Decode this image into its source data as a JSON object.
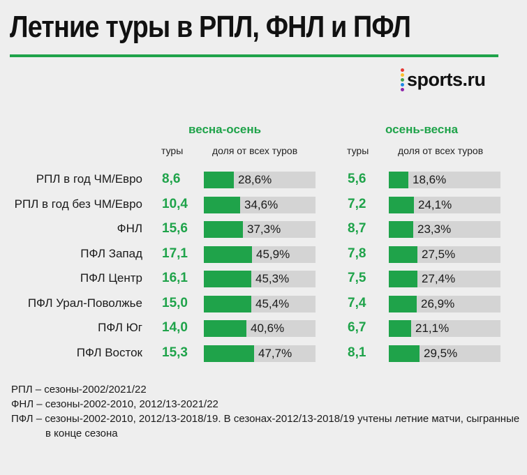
{
  "title": "Летние туры в РПЛ, ФНЛ и ПФЛ",
  "brand": "sports.ru",
  "brand_dot_colors": [
    "#e53935",
    "#fbc02d",
    "#43a047",
    "#1e88e5",
    "#8e24aa"
  ],
  "chart_data": {
    "type": "table",
    "title": "Летние туры в РПЛ, ФНЛ и ПФЛ",
    "categories": [
      "РПЛ в год ЧМ/Евро",
      "РПЛ в год без ЧМ/Евро",
      "ФНЛ",
      "ПФЛ Запад",
      "ПФЛ Центр",
      "ПФЛ Урал-Поволжье",
      "ПФЛ Юг",
      "ПФЛ Восток"
    ],
    "groups": [
      {
        "name": "весна-осень",
        "tours_header": "туры",
        "share_header": "доля от всех туров",
        "tours": [
          "8,6",
          "10,4",
          "15,6",
          "17,1",
          "16,1",
          "15,0",
          "14,0",
          "15,3"
        ],
        "shares": [
          "28,6%",
          "34,6%",
          "37,3%",
          "45,9%",
          "45,3%",
          "45,4%",
          "40,6%",
          "47,7%"
        ],
        "share_values": [
          28.6,
          34.6,
          37.3,
          45.9,
          45.3,
          45.4,
          40.6,
          47.7
        ]
      },
      {
        "name": "осень-весна",
        "tours_header": "туры",
        "share_header": "доля от всех туров",
        "tours": [
          "5,6",
          "7,2",
          "8,7",
          "7,8",
          "7,5",
          "7,4",
          "6,7",
          "8,1"
        ],
        "shares": [
          "18,6%",
          "24,1%",
          "23,3%",
          "27,5%",
          "27,4%",
          "26,9%",
          "21,1%",
          "29,5%"
        ],
        "share_values": [
          18.6,
          24.1,
          23.3,
          27.5,
          27.4,
          26.9,
          21.1,
          29.5
        ]
      }
    ],
    "bar_max": 100
  },
  "footnotes": [
    "РПЛ – сезоны-2002/2021/22",
    "ФНЛ – сезоны-2002-2010, 2012/13-2021/22",
    "ПФЛ – сезоны-2002-2010, 2012/13-2018/19. В сезонах-2012/13-2018/19 учтены летние матчи, сыгранные в конце сезона"
  ],
  "colors": {
    "accent": "#1fa34a",
    "track": "#d4d4d4",
    "background": "#eeeeee"
  }
}
